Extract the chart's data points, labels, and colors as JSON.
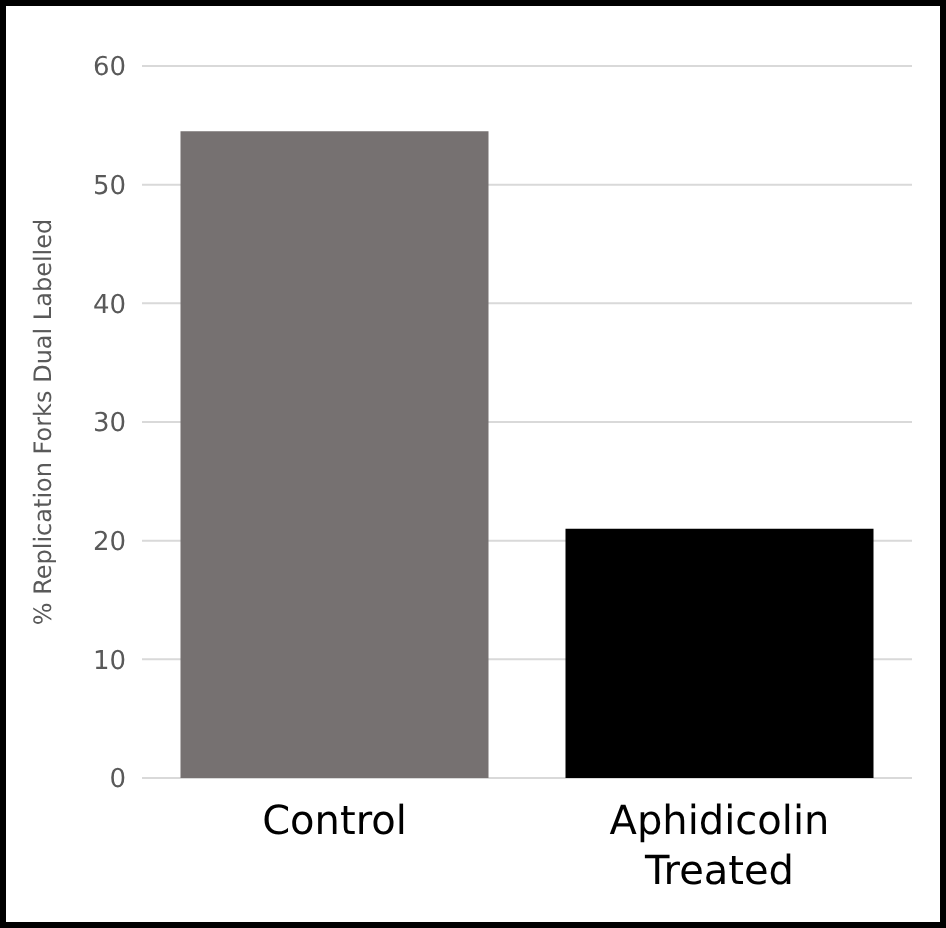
{
  "chart_data": {
    "type": "bar",
    "ylabel": "% Replication Forks Dual Labelled",
    "categories": [
      "Control",
      "Aphidicolin Treated"
    ],
    "values": [
      54.5,
      21
    ],
    "colors": [
      "#767171",
      "#000000"
    ],
    "ylim": [
      0,
      60
    ],
    "yticks": [
      0,
      10,
      20,
      30,
      40,
      50,
      60
    ],
    "grid": "y"
  }
}
